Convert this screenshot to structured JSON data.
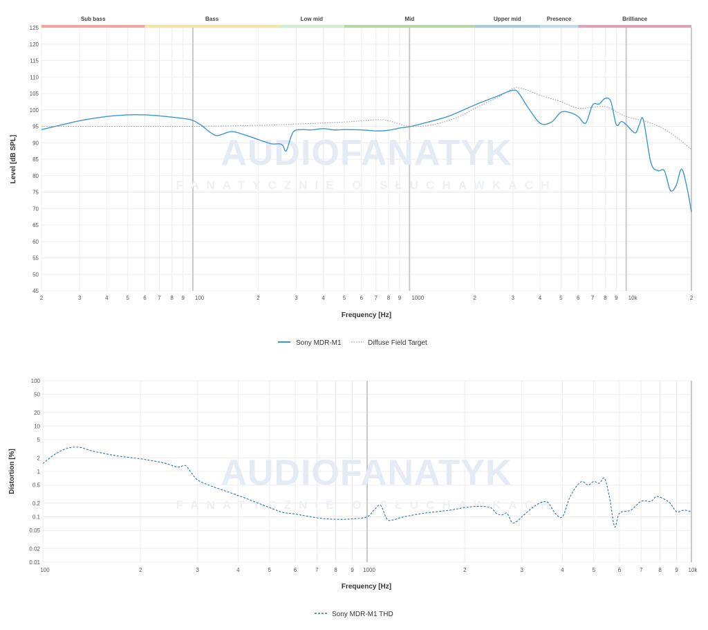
{
  "chart_data": [
    {
      "type": "line",
      "xlabel": "Frequency [Hz]",
      "ylabel": "Level [dB SPL]",
      "x_scale": "log",
      "xlim": [
        20,
        20000
      ],
      "ylim": [
        45,
        125
      ],
      "y_ticks": [
        45,
        50,
        55,
        60,
        65,
        70,
        75,
        80,
        85,
        90,
        95,
        100,
        105,
        110,
        115,
        120,
        125
      ],
      "x_ticks": [
        {
          "value": 20,
          "label": "2"
        },
        {
          "value": 30,
          "label": "3"
        },
        {
          "value": 40,
          "label": "4"
        },
        {
          "value": 50,
          "label": "5"
        },
        {
          "value": 60,
          "label": "6"
        },
        {
          "value": 70,
          "label": "7"
        },
        {
          "value": 80,
          "label": "8"
        },
        {
          "value": 90,
          "label": "9"
        },
        {
          "value": 100,
          "label": "100"
        },
        {
          "value": 200,
          "label": "2"
        },
        {
          "value": 300,
          "label": "3"
        },
        {
          "value": 400,
          "label": "4"
        },
        {
          "value": 500,
          "label": "5"
        },
        {
          "value": 600,
          "label": "6"
        },
        {
          "value": 700,
          "label": "7"
        },
        {
          "value": 800,
          "label": "8"
        },
        {
          "value": 900,
          "label": "9"
        },
        {
          "value": 1000,
          "label": "1000"
        },
        {
          "value": 2000,
          "label": "2"
        },
        {
          "value": 3000,
          "label": "3"
        },
        {
          "value": 4000,
          "label": "4"
        },
        {
          "value": 5000,
          "label": "5"
        },
        {
          "value": 6000,
          "label": "6"
        },
        {
          "value": 7000,
          "label": "7"
        },
        {
          "value": 8000,
          "label": "8"
        },
        {
          "value": 9000,
          "label": "9"
        },
        {
          "value": 10000,
          "label": "10k"
        },
        {
          "value": 20000,
          "label": "2"
        }
      ],
      "major_x": [
        100,
        1000,
        10000,
        20000
      ],
      "grid": true,
      "legend_position": "bottom-center",
      "bands": [
        {
          "label": "Sub bass",
          "from": 20,
          "to": 60,
          "color": "#f0a4a4"
        },
        {
          "label": "Bass",
          "from": 60,
          "to": 250,
          "color": "#f6e7a0"
        },
        {
          "label": "Low mid",
          "from": 250,
          "to": 500,
          "color": "#d5ebcf"
        },
        {
          "label": "Mid",
          "from": 500,
          "to": 2000,
          "color": "#b2d9a6"
        },
        {
          "label": "Upper mid",
          "from": 2000,
          "to": 4000,
          "color": "#a9c8dc"
        },
        {
          "label": "Presence",
          "from": 4000,
          "to": 6000,
          "color": "#c2daf0"
        },
        {
          "label": "Brilliance",
          "from": 6000,
          "to": 20000,
          "color": "#d9a3ba"
        }
      ],
      "series": [
        {
          "name": "Sony MDR-M1",
          "color": "#3a96d6",
          "style": "solid",
          "x": [
            20,
            25,
            30,
            40,
            50,
            60,
            70,
            80,
            90,
            100,
            110,
            120,
            130,
            150,
            170,
            200,
            230,
            250,
            260,
            270,
            290,
            320,
            350,
            400,
            450,
            500,
            600,
            700,
            800,
            900,
            1000,
            1200,
            1500,
            2000,
            2500,
            3000,
            3200,
            3500,
            4000,
            4500,
            5000,
            5500,
            6000,
            6500,
            7000,
            7500,
            8000,
            8500,
            9000,
            9500,
            10000,
            11000,
            11500,
            12000,
            13000,
            14000,
            15000,
            16000,
            17000,
            18000,
            19000,
            20000
          ],
          "y": [
            94,
            95.5,
            96.7,
            98,
            98.5,
            98.5,
            98.2,
            97.8,
            97.4,
            96.8,
            95.2,
            93.2,
            92.2,
            93.4,
            92.6,
            91,
            89.7,
            89.7,
            89.2,
            87.6,
            93.2,
            94,
            93.9,
            94.3,
            93.9,
            94,
            93.9,
            93.6,
            93.8,
            94.5,
            94.9,
            96.2,
            98,
            101.5,
            104,
            106,
            105,
            101,
            96,
            96.2,
            99.3,
            99.2,
            98,
            96,
            101.5,
            101.8,
            103.5,
            102.5,
            95.5,
            96.5,
            95.5,
            93,
            95.5,
            97,
            84,
            81.5,
            81.5,
            75.5,
            77,
            82,
            77,
            69
          ]
        },
        {
          "name": "Diffuse Field Target",
          "color": "#9a9a9a",
          "style": "dotted",
          "x": [
            20,
            50,
            100,
            200,
            300,
            500,
            700,
            800,
            1000,
            1300,
            1700,
            2000,
            2500,
            3000,
            3200,
            3500,
            4000,
            5000,
            6000,
            7000,
            8000,
            9000,
            10000,
            13000,
            16000,
            20000
          ],
          "y": [
            95,
            95,
            95,
            95.3,
            95.7,
            96.3,
            97,
            96.7,
            95,
            95.6,
            98,
            100.5,
            103.5,
            106.5,
            106.7,
            106,
            104.5,
            102.5,
            100.5,
            100.8,
            101,
            99.5,
            98,
            96,
            93,
            88
          ]
        }
      ]
    },
    {
      "type": "line",
      "xlabel": "Frequency [Hz]",
      "ylabel": "Distortion [%]",
      "x_scale": "log",
      "y_scale": "log",
      "xlim": [
        100,
        10000
      ],
      "ylim": [
        0.01,
        100
      ],
      "y_ticks": [
        {
          "value": 0.01,
          "label": "0.01"
        },
        {
          "value": 0.02,
          "label": "0.02"
        },
        {
          "value": 0.05,
          "label": "0.05"
        },
        {
          "value": 0.1,
          "label": "0.1"
        },
        {
          "value": 0.2,
          "label": "0.2"
        },
        {
          "value": 0.5,
          "label": "0.5"
        },
        {
          "value": 1,
          "label": "1"
        },
        {
          "value": 2,
          "label": "2"
        },
        {
          "value": 5,
          "label": "5"
        },
        {
          "value": 10,
          "label": "10"
        },
        {
          "value": 20,
          "label": "20"
        },
        {
          "value": 50,
          "label": "50"
        },
        {
          "value": 100,
          "label": "100"
        }
      ],
      "x_ticks": [
        {
          "value": 100,
          "label": "100"
        },
        {
          "value": 200,
          "label": "2"
        },
        {
          "value": 300,
          "label": "3"
        },
        {
          "value": 400,
          "label": "4"
        },
        {
          "value": 500,
          "label": "5"
        },
        {
          "value": 600,
          "label": "6"
        },
        {
          "value": 700,
          "label": "7"
        },
        {
          "value": 800,
          "label": "8"
        },
        {
          "value": 900,
          "label": "9"
        },
        {
          "value": 1000,
          "label": "1000"
        },
        {
          "value": 2000,
          "label": "2"
        },
        {
          "value": 3000,
          "label": "3"
        },
        {
          "value": 4000,
          "label": "4"
        },
        {
          "value": 5000,
          "label": "5"
        },
        {
          "value": 6000,
          "label": "6"
        },
        {
          "value": 7000,
          "label": "7"
        },
        {
          "value": 8000,
          "label": "8"
        },
        {
          "value": 9000,
          "label": "9"
        },
        {
          "value": 10000,
          "label": "10k"
        }
      ],
      "major_x": [
        1000,
        10000
      ],
      "grid": true,
      "legend_position": "bottom-center",
      "series": [
        {
          "name": "Sony MDR-M1 THD",
          "color": "#2f6fb5",
          "style": "dashed",
          "x": [
            100,
            110,
            120,
            130,
            140,
            150,
            170,
            200,
            220,
            240,
            260,
            275,
            285,
            300,
            330,
            370,
            420,
            500,
            550,
            600,
            700,
            800,
            900,
            1000,
            1050,
            1100,
            1150,
            1200,
            1300,
            1500,
            1800,
            2000,
            2200,
            2400,
            2500,
            2600,
            2700,
            2800,
            2900,
            3000,
            3200,
            3400,
            3600,
            3800,
            4000,
            4200,
            4400,
            4600,
            4800,
            5000,
            5200,
            5400,
            5600,
            5800,
            6000,
            6500,
            7000,
            7500,
            7800,
            8200,
            8600,
            9000,
            9500,
            10000
          ],
          "y": [
            1.5,
            2.5,
            3.3,
            3.4,
            2.9,
            2.6,
            2.2,
            1.9,
            1.7,
            1.5,
            1.25,
            1.35,
            1.0,
            0.65,
            0.48,
            0.36,
            0.26,
            0.16,
            0.125,
            0.115,
            0.095,
            0.088,
            0.09,
            0.1,
            0.14,
            0.18,
            0.09,
            0.085,
            0.1,
            0.12,
            0.14,
            0.16,
            0.17,
            0.16,
            0.12,
            0.11,
            0.12,
            0.075,
            0.08,
            0.1,
            0.15,
            0.2,
            0.21,
            0.12,
            0.1,
            0.25,
            0.45,
            0.6,
            0.5,
            0.6,
            0.55,
            0.7,
            0.25,
            0.06,
            0.12,
            0.14,
            0.22,
            0.22,
            0.28,
            0.25,
            0.2,
            0.13,
            0.14,
            0.13
          ]
        }
      ]
    }
  ],
  "watermark": {
    "main": "AUDIOFANATYK",
    "sub": "FANATYCZNIE O SŁUCHAWKACH"
  }
}
